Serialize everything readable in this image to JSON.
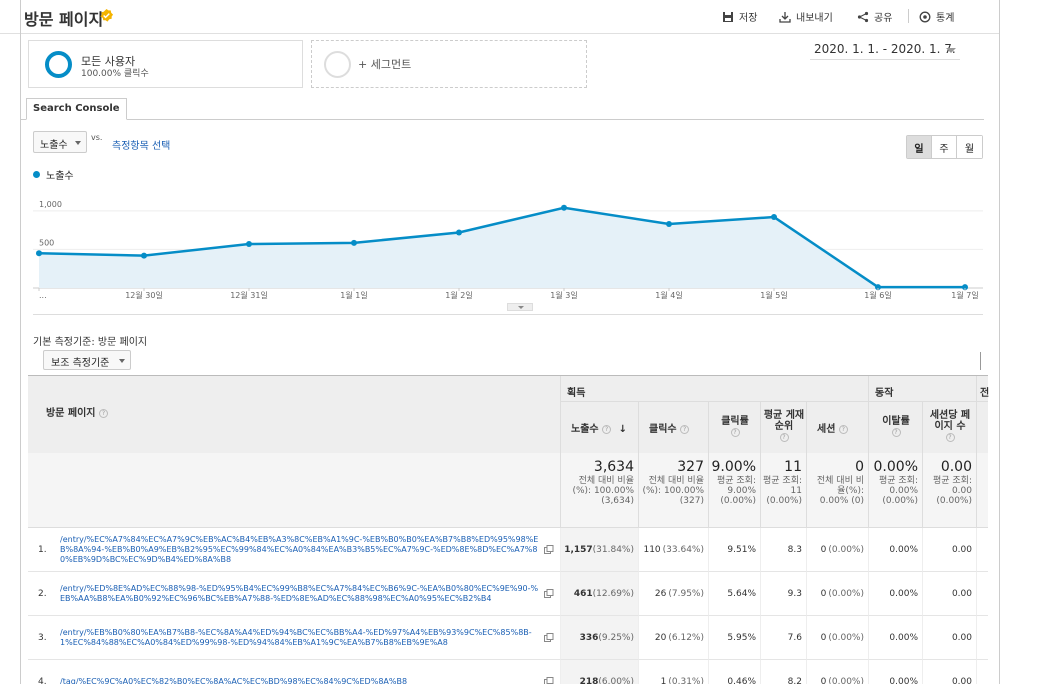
{
  "header": {
    "title": "방문 페이지",
    "actions": {
      "save": "저장",
      "export": "내보내기",
      "share": "공유",
      "insights": "통계"
    }
  },
  "segments": {
    "active_name": "모든 사용자",
    "active_sub": "100.00% 클릭수",
    "add_label": "+ 세그먼트"
  },
  "date_range": "2020. 1. 1. - 2020. 1. 7.",
  "tab": "Search Console",
  "metric": {
    "selected": "노출수",
    "vs": "vs.",
    "choose": "측정항목 선택"
  },
  "period": [
    "일",
    "주",
    "월"
  ],
  "chart_data": {
    "type": "area",
    "series": [
      {
        "name": "노출수",
        "values": [
          450,
          420,
          570,
          585,
          720,
          1040,
          830,
          920,
          12,
          12
        ]
      }
    ],
    "x_labels": [
      "...",
      "12월 30일",
      "12월 31일",
      "1월 1일",
      "1월 2일",
      "1월 3일",
      "1월 4일",
      "1월 5일",
      "1월 6일",
      "1월 7일"
    ],
    "y_ticks": [
      "1,000",
      "500"
    ],
    "ylim": [
      0,
      1400
    ],
    "color": "#058dc7"
  },
  "primary_dimension": "기본 측정기준: 방문 페이지",
  "secondary_dimension": "보조 측정기준",
  "table": {
    "dim_header": "방문 페이지",
    "group_acq": "획득",
    "group_beh": "동작",
    "group_conv": "전",
    "headers": {
      "impressions": "노출수",
      "clicks": "클릭수",
      "ctr": "클릭률",
      "avg_pos": "평균 게재순위",
      "sessions": "세션",
      "bounce": "이탈률",
      "pps": "세션당 페이지 수"
    },
    "summary": {
      "impressions": {
        "big": "3,634",
        "small": "전체 대비 비율(%): 100.00% (3,634)"
      },
      "clicks": {
        "big": "327",
        "small": "전체 대비 비율(%): 100.00% (327)"
      },
      "ctr": {
        "big": "9.00%",
        "small": "평균 조회: 9.00% (0.00%)"
      },
      "avg_pos": {
        "big": "11",
        "small": "평균 조회: 11 (0.00%)"
      },
      "sessions": {
        "big": "0",
        "small": "전체 대비 비율(%): 0.00% (0)"
      },
      "bounce": {
        "big": "0.00%",
        "small": "평균 조회: 0.00% (0.00%)"
      },
      "pps": {
        "big": "0.00",
        "small": "평균 조회: 0.00 (0.00%)"
      }
    },
    "rows": [
      {
        "num": "1.",
        "page": "/entry/%EC%A7%84%EC%A7%9C%EB%AC%B4%EB%A3%8C%EB%A1%9C-%EB%B0%B0%EA%B7%B8%ED%95%98%EB%8A%94-%EB%B0%A9%EB%B2%95%EC%99%84%EC%A0%84%EA%B3%B5%EC%A7%9C-%ED%8E%8D%EC%A7%80%EB%9D%BC%EC%9D%B4%ED%8A%B8",
        "impr": "1,157",
        "impr_pct": "(31.84%)",
        "clicks": "110",
        "clicks_pct": "(33.64%)",
        "ctr": "9.51%",
        "pos": "8.3",
        "sess": "0",
        "sess_pct": "(0.00%)",
        "bounce": "0.00%",
        "pps": "0.00"
      },
      {
        "num": "2.",
        "page": "/entry/%ED%8E%AD%EC%88%98-%ED%95%B4%EC%99%B8%EC%A7%84%EC%B6%9C-%EA%B0%80%EC%9E%90-%EB%AA%B8%EA%B0%92%EC%96%BC%EB%A7%88-%ED%8E%AD%EC%88%98%EC%A0%95%EC%B2%B4",
        "impr": "461",
        "impr_pct": "(12.69%)",
        "clicks": "26",
        "clicks_pct": "(7.95%)",
        "ctr": "5.64%",
        "pos": "9.3",
        "sess": "0",
        "sess_pct": "(0.00%)",
        "bounce": "0.00%",
        "pps": "0.00"
      },
      {
        "num": "3.",
        "page": "/entry/%EB%B0%80%EA%B7%B8-%EC%8A%A4%ED%94%BC%EC%BB%A4-%ED%97%A4%EB%93%9C%EC%85%8B-1%EC%84%88%EC%A0%84%ED%99%98-%ED%94%84%EB%A1%9C%EA%B7%B8%EB%9E%A8",
        "impr": "336",
        "impr_pct": "(9.25%)",
        "clicks": "20",
        "clicks_pct": "(6.12%)",
        "ctr": "5.95%",
        "pos": "7.6",
        "sess": "0",
        "sess_pct": "(0.00%)",
        "bounce": "0.00%",
        "pps": "0.00"
      },
      {
        "num": "4.",
        "page": "/tag/%EC%9C%A0%EC%82%B0%EC%8A%AC%EC%BD%98%EC%84%9C%ED%8A%B8",
        "impr": "218",
        "impr_pct": "(6.00%)",
        "clicks": "1",
        "clicks_pct": "(0.31%)",
        "ctr": "0.46%",
        "pos": "8.2",
        "sess": "0",
        "sess_pct": "(0.00%)",
        "bounce": "0.00%",
        "pps": "0.00"
      }
    ]
  }
}
